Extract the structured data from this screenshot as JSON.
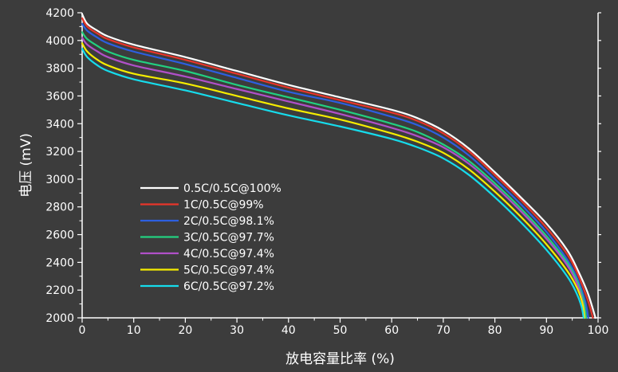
{
  "chart_data": {
    "type": "line",
    "xlabel": "放电容量比率 (%)",
    "ylabel": "电压 (mV)",
    "xlim": [
      0,
      100
    ],
    "ylim": [
      2000,
      4200
    ],
    "xticks": [
      0,
      10,
      20,
      30,
      40,
      50,
      60,
      70,
      80,
      90,
      100
    ],
    "yticks": [
      2000,
      2200,
      2400,
      2600,
      2800,
      3000,
      3200,
      3400,
      3600,
      3800,
      4000,
      4200
    ],
    "grid": false,
    "legend_position": "center-left",
    "background": "#3c3c3c",
    "axis_color": "#ffffff",
    "series": [
      {
        "name": "0.5C/0.5C@100%",
        "color": "#ffffff",
        "x": [
          0,
          1,
          3,
          5,
          10,
          20,
          30,
          40,
          50,
          60,
          65,
          70,
          75,
          80,
          85,
          90,
          94,
          96,
          98,
          99.5
        ],
        "y": [
          4190,
          4120,
          4070,
          4030,
          3970,
          3880,
          3780,
          3680,
          3590,
          3500,
          3440,
          3350,
          3220,
          3050,
          2870,
          2680,
          2490,
          2350,
          2180,
          2000
        ]
      },
      {
        "name": "1C/0.5C@99%",
        "color": "#e8352a",
        "x": [
          0,
          1,
          3,
          5,
          10,
          20,
          30,
          40,
          50,
          60,
          65,
          70,
          75,
          80,
          85,
          90,
          94,
          96,
          98,
          99
        ],
        "y": [
          4160,
          4100,
          4050,
          4010,
          3950,
          3860,
          3760,
          3660,
          3570,
          3480,
          3420,
          3330,
          3200,
          3030,
          2850,
          2650,
          2460,
          2320,
          2130,
          2000
        ]
      },
      {
        "name": "2C/0.5C@98.1%",
        "color": "#2d5fe0",
        "x": [
          0,
          1,
          3,
          5,
          10,
          20,
          30,
          40,
          50,
          60,
          65,
          70,
          75,
          80,
          85,
          90,
          94,
          96,
          97.5,
          98.1
        ],
        "y": [
          4120,
          4070,
          4020,
          3980,
          3920,
          3830,
          3730,
          3630,
          3550,
          3450,
          3390,
          3300,
          3170,
          3000,
          2820,
          2620,
          2420,
          2280,
          2120,
          2000
        ]
      },
      {
        "name": "3C/0.5C@97.7%",
        "color": "#22d080",
        "x": [
          0,
          1,
          3,
          5,
          10,
          20,
          30,
          40,
          50,
          60,
          65,
          70,
          75,
          80,
          85,
          90,
          94,
          96,
          97.2,
          97.7
        ],
        "y": [
          4060,
          4010,
          3960,
          3920,
          3860,
          3780,
          3680,
          3590,
          3500,
          3400,
          3340,
          3250,
          3130,
          2970,
          2790,
          2590,
          2400,
          2260,
          2120,
          2000
        ]
      },
      {
        "name": "4C/0.5C@97.4%",
        "color": "#b050c8",
        "x": [
          0,
          1,
          3,
          5,
          10,
          20,
          30,
          40,
          50,
          60,
          65,
          70,
          75,
          80,
          85,
          90,
          94,
          96,
          97,
          97.4
        ],
        "y": [
          4020,
          3970,
          3920,
          3880,
          3820,
          3740,
          3650,
          3560,
          3470,
          3370,
          3310,
          3230,
          3110,
          2950,
          2770,
          2570,
          2380,
          2240,
          2110,
          2000
        ]
      },
      {
        "name": "5C/0.5C@97.4%",
        "color": "#f5ec00",
        "x": [
          0,
          1,
          3,
          5,
          10,
          20,
          30,
          40,
          50,
          60,
          65,
          70,
          75,
          80,
          85,
          90,
          94,
          96,
          97,
          97.4
        ],
        "y": [
          3980,
          3920,
          3860,
          3820,
          3760,
          3690,
          3600,
          3510,
          3430,
          3330,
          3270,
          3190,
          3070,
          2910,
          2730,
          2530,
          2340,
          2210,
          2100,
          2000
        ]
      },
      {
        "name": "6C/0.5C@97.2%",
        "color": "#16dcec",
        "x": [
          0,
          1,
          3,
          5,
          10,
          20,
          30,
          40,
          50,
          60,
          65,
          70,
          75,
          80,
          85,
          90,
          94,
          95.8,
          96.8,
          97.2
        ],
        "y": [
          3940,
          3880,
          3820,
          3780,
          3720,
          3640,
          3550,
          3460,
          3380,
          3290,
          3230,
          3150,
          3030,
          2870,
          2690,
          2490,
          2300,
          2180,
          2080,
          2000
        ]
      }
    ]
  }
}
